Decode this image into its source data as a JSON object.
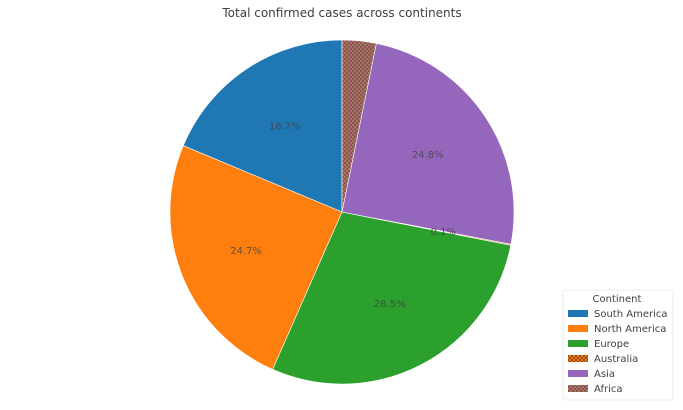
{
  "chart_data": {
    "type": "pie",
    "title": "Total confirmed cases across continents",
    "legend_title": "Continent",
    "legend_position": "bottom-right",
    "start_angle_deg": 90,
    "direction": "counterclockwise",
    "slices": [
      {
        "label": "South America",
        "value": 18.7,
        "pct_label": "18.7%",
        "color": "#1f77b4",
        "pattern": "none"
      },
      {
        "label": "North America",
        "value": 24.7,
        "pct_label": "24.7%",
        "color": "#ff7f0e",
        "pattern": "none"
      },
      {
        "label": "Europe",
        "value": 28.5,
        "pct_label": "28.5%",
        "color": "#2ca02c",
        "pattern": "none"
      },
      {
        "label": "Australia",
        "value": 0.1,
        "pct_label": "0.1%",
        "color": "#d62728",
        "pattern": "crosshatch"
      },
      {
        "label": "Asia",
        "value": 24.8,
        "pct_label": "24.8%",
        "color": "#9467bd",
        "pattern": "none"
      },
      {
        "label": "Africa",
        "value": 3.2,
        "pct_label": "",
        "color": "#8c564b",
        "pattern": "dots"
      }
    ]
  }
}
